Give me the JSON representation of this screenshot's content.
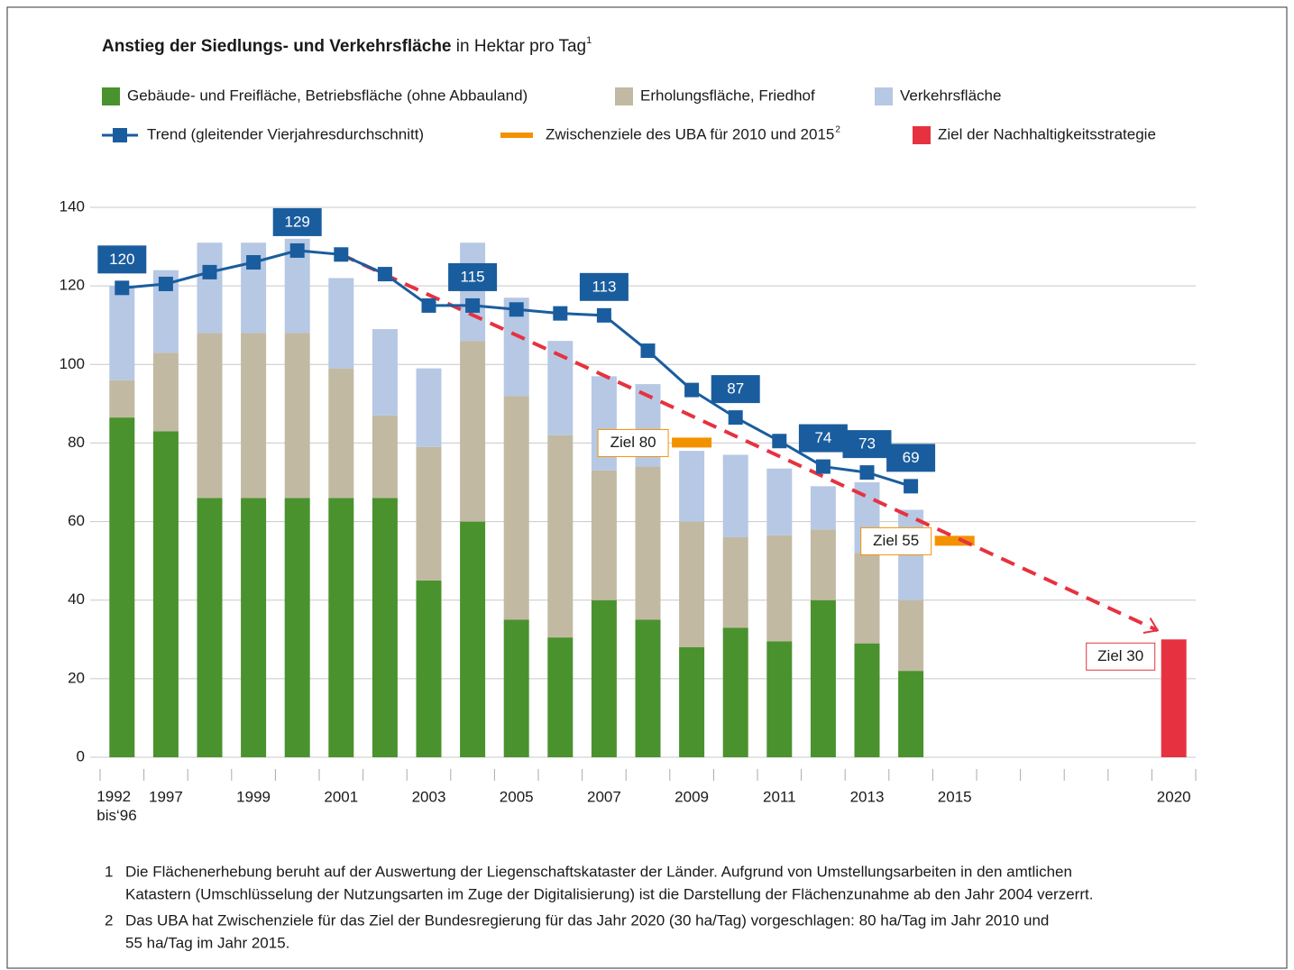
{
  "chart_data": {
    "type": "bar",
    "stacked": true,
    "title": "Anstieg der Siedlungs- und Verkehrsfläche",
    "title_suffix": "in Hektar pro Tag",
    "title_note": "1",
    "categories": [
      "1992 bis‘96",
      "1997",
      null,
      "1999",
      null,
      "2001",
      null,
      "2003",
      null,
      "2005",
      null,
      "2007",
      null,
      "2009",
      null,
      "2011",
      null,
      "2013",
      null,
      "2015",
      null,
      null,
      null,
      null,
      "2020"
    ],
    "ylim": [
      0,
      140
    ],
    "yticks": [
      0,
      20,
      40,
      60,
      80,
      100,
      120,
      140
    ],
    "grid": true,
    "series": [
      {
        "name": "Gebäude- und Freifläche, Betriebsfläche (ohne Abbauland)",
        "kind": "bar",
        "color": "#4a922d",
        "values": [
          86.5,
          83,
          66,
          66,
          66,
          66,
          66,
          45,
          60,
          35,
          30.5,
          40,
          35,
          28,
          33,
          29.5,
          40,
          29,
          22,
          null,
          null,
          null,
          null,
          null,
          null
        ]
      },
      {
        "name": "Erholungsfläche, Friedhof",
        "kind": "bar",
        "color": "#c2b9a3",
        "values": [
          9.5,
          20,
          42,
          42,
          42,
          33,
          21,
          34,
          46,
          57,
          51.5,
          33,
          39,
          32,
          23,
          27,
          18,
          23,
          18,
          null,
          null,
          null,
          null,
          null,
          null
        ]
      },
      {
        "name": "Verkehrsfläche",
        "kind": "bar",
        "color": "#b6c8e4",
        "values": [
          24,
          21,
          23,
          23,
          24,
          23,
          22,
          20,
          25,
          25,
          24,
          24,
          21,
          18,
          21,
          17,
          11,
          18,
          23,
          null,
          null,
          null,
          null,
          null,
          null
        ]
      },
      {
        "name": "Trend (gleitender Vierjahresdurchschnitt)",
        "kind": "line",
        "color": "#1a5d9e",
        "values": [
          119.5,
          120.5,
          123.5,
          126,
          129,
          128,
          123,
          115,
          115,
          114,
          113,
          112.5,
          103.5,
          93.5,
          86.5,
          80.5,
          74,
          72.5,
          69,
          null,
          null,
          null,
          null,
          null,
          null
        ],
        "value_labels": [
          "120",
          null,
          null,
          null,
          "129",
          null,
          null,
          null,
          "115",
          null,
          null,
          "113",
          null,
          null,
          "87",
          null,
          "74",
          "73",
          "69",
          null,
          null,
          null,
          null,
          null,
          null
        ]
      },
      {
        "name": "Zwischenziele des UBA für 2010 und 2015",
        "name_note": "2",
        "kind": "target",
        "color": "#f39200",
        "values": [
          null,
          null,
          null,
          null,
          null,
          null,
          null,
          null,
          null,
          null,
          null,
          null,
          null,
          80,
          null,
          null,
          null,
          null,
          null,
          55,
          null,
          null,
          null,
          null,
          null
        ],
        "value_labels": [
          null,
          null,
          null,
          null,
          null,
          null,
          null,
          null,
          null,
          null,
          null,
          null,
          null,
          "Ziel 80",
          null,
          null,
          null,
          null,
          null,
          "Ziel 55",
          null,
          null,
          null,
          null,
          null
        ]
      },
      {
        "name": "Ziel der Nachhaltigkeitsstrategie",
        "kind": "bar",
        "color": "#e63240",
        "values": [
          null,
          null,
          null,
          null,
          null,
          null,
          null,
          null,
          null,
          null,
          null,
          null,
          null,
          null,
          null,
          null,
          null,
          null,
          null,
          null,
          null,
          null,
          null,
          null,
          30
        ],
        "value_labels": [
          null,
          null,
          null,
          null,
          null,
          null,
          null,
          null,
          null,
          null,
          null,
          null,
          null,
          null,
          null,
          null,
          null,
          null,
          null,
          null,
          null,
          null,
          null,
          null,
          "Ziel 30"
        ]
      }
    ],
    "footnotes": [
      {
        "number": "1",
        "lines": [
          "Die Flächenerhebung beruht auf der Auswertung der Liegenschaftskataster der Länder. Aufgrund von Umstellungsarbeiten in den amtlichen",
          "Katastern (Umschlüsselung der Nutzungsarten im Zuge der Digitalisierung) ist die Darstellung der Flächenzunahme ab den Jahr 2004 verzerrt."
        ]
      },
      {
        "number": "2",
        "lines": [
          "Das UBA hat Zwischenziele für das Ziel der Bundesregierung für das Jahr 2020 (30 ha/Tag) vorgeschlagen: 80 ha/Tag im Jahr 2010 und",
          "55 ha/Tag im Jahr 2015."
        ]
      }
    ]
  }
}
